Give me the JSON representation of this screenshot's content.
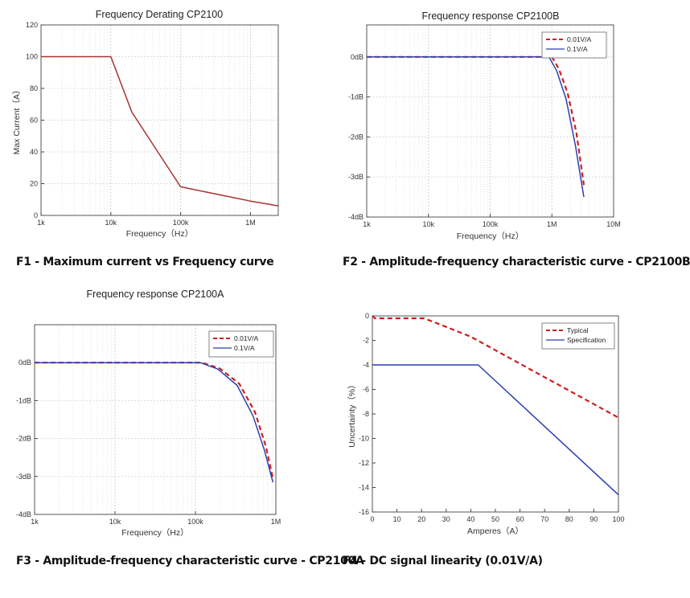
{
  "charts": [
    {
      "type": "line",
      "title": "Frequency Derating CP2100",
      "xlabel": "Frequency（Hz）",
      "ylabel": "Max Current（A）",
      "xscale": "log",
      "xlim": [
        1000,
        2500000
      ],
      "ylim": [
        0,
        120
      ],
      "xticks": [
        1000,
        10000,
        100000,
        1000000
      ],
      "xtick_labels": [
        "1k",
        "10k",
        "100k",
        "1M"
      ],
      "yticks": [
        0,
        20,
        40,
        60,
        80,
        100,
        120
      ],
      "ytick_labels": [
        "0",
        "20",
        "40",
        "60",
        "80",
        "100",
        "120"
      ],
      "grid": true,
      "series": [
        {
          "color": "#a83232",
          "dashed": false,
          "x": [
            1000,
            10000,
            20000,
            100000,
            1000000,
            2500000
          ],
          "y": [
            100,
            100,
            65,
            18,
            9,
            6
          ]
        }
      ],
      "caption": "F1 - Maximum current vs Frequency curve"
    },
    {
      "type": "line",
      "title": "Frequency response CP2100B",
      "xlabel": "Frequency（Hz）",
      "ylabel": "",
      "xscale": "log",
      "xlim": [
        1000,
        10000000
      ],
      "ylim": [
        -4,
        0.8
      ],
      "xticks": [
        1000,
        10000,
        100000,
        1000000,
        10000000
      ],
      "xtick_labels": [
        "1k",
        "10k",
        "100k",
        "1M",
        "10M"
      ],
      "yticks": [
        -4,
        -3,
        -2,
        -1,
        0
      ],
      "ytick_labels": [
        "-4dB",
        "-3dB",
        "-2dB",
        "-1dB",
        "0dB"
      ],
      "grid": true,
      "legend": "top-right",
      "series": [
        {
          "name": "0.01V/A",
          "color": "#cc1f1f",
          "dashed": true,
          "x": [
            1000,
            1000000,
            1300000,
            1800000,
            2500000,
            3300000
          ],
          "y": [
            0,
            0,
            -0.3,
            -0.9,
            -1.9,
            -3.2
          ]
        },
        {
          "name": "0.1V/A",
          "color": "#2b3fb0",
          "dashed": false,
          "x": [
            1000,
            900000,
            1200000,
            1700000,
            2400000,
            3300000
          ],
          "y": [
            0,
            0,
            -0.35,
            -1.05,
            -2.2,
            -3.5
          ]
        }
      ],
      "caption": "F2 - Amplitude-frequency characteristic curve - CP2100B"
    },
    {
      "type": "line",
      "title": "Frequency response CP2100A",
      "xlabel": "Frequency（Hz）",
      "ylabel": "",
      "xscale": "log",
      "xlim": [
        1000,
        1000000
      ],
      "ylim": [
        -4,
        1
      ],
      "xticks": [
        1000,
        10000,
        100000,
        1000000
      ],
      "xtick_labels": [
        "1k",
        "10k",
        "100k",
        "1M"
      ],
      "yticks": [
        -4,
        -3,
        -2,
        -1,
        0
      ],
      "ytick_labels": [
        "-4dB",
        "-3dB",
        "-2dB",
        "-1dB",
        "0dB"
      ],
      "grid": true,
      "legend": "top-right",
      "series": [
        {
          "name": "0.01V/A",
          "color": "#cc1f1f",
          "dashed": true,
          "x": [
            1000,
            120000,
            200000,
            350000,
            550000,
            750000,
            920000
          ],
          "y": [
            0,
            0,
            -0.15,
            -0.55,
            -1.3,
            -2.2,
            -3.05
          ]
        },
        {
          "name": "0.1V/A",
          "color": "#2b3fb0",
          "dashed": false,
          "x": [
            1000,
            115000,
            190000,
            330000,
            520000,
            720000,
            920000
          ],
          "y": [
            0,
            0,
            -0.17,
            -0.6,
            -1.4,
            -2.3,
            -3.15
          ]
        }
      ],
      "caption": "F3 - Amplitude-frequency characteristic curve - CP2100A"
    },
    {
      "type": "line",
      "title": "",
      "xlabel": "Amperes（A）",
      "ylabel": "Uncertainty（%）",
      "xscale": "linear",
      "xlim": [
        0,
        100
      ],
      "ylim": [
        -16,
        0
      ],
      "xticks": [
        0,
        10,
        20,
        30,
        40,
        50,
        60,
        70,
        80,
        90,
        100
      ],
      "xtick_labels": [
        "0",
        "10",
        "20",
        "30",
        "40",
        "50",
        "60",
        "70",
        "80",
        "90",
        "100"
      ],
      "yticks": [
        -16,
        -14,
        -12,
        -10,
        -8,
        -6,
        -4,
        -2,
        0
      ],
      "ytick_labels": [
        "-16",
        "-14",
        "-12",
        "-10",
        "-8",
        "-6",
        "-4",
        "-2",
        "0"
      ],
      "grid": false,
      "legend": "top-right",
      "series": [
        {
          "name": "Typical",
          "color": "#cc1f1f",
          "dashed": true,
          "x": [
            0,
            1,
            21,
            30,
            40,
            50,
            60,
            70,
            80,
            90,
            100
          ],
          "y": [
            0,
            -0.2,
            -0.2,
            -0.9,
            -1.7,
            -2.8,
            -3.9,
            -5.0,
            -6.1,
            -7.2,
            -8.3
          ]
        },
        {
          "name": "Specification",
          "color": "#2b3fb0",
          "dashed": false,
          "x": [
            0,
            43,
            100
          ],
          "y": [
            -4,
            -4,
            -14.6
          ]
        }
      ],
      "caption": "F4 - DC signal linearity (0.01V/A)"
    }
  ]
}
